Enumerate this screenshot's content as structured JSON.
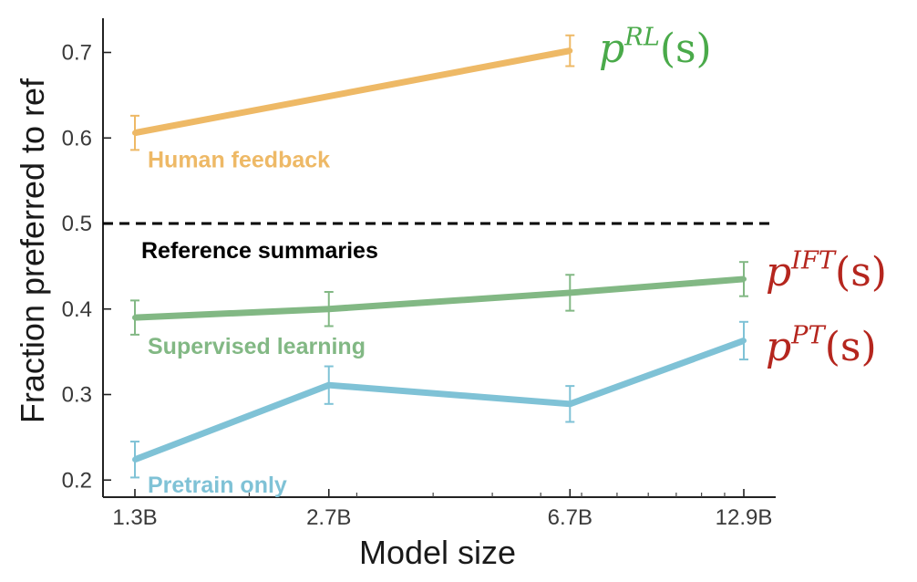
{
  "chart_data": {
    "type": "line",
    "xlabel": "Model size",
    "ylabel": "Fraction preferred to ref",
    "x_scale": "log",
    "categories": [
      "1.3B",
      "2.7B",
      "6.7B",
      "12.9B"
    ],
    "x": [
      1.3,
      2.7,
      6.7,
      12.9
    ],
    "ylim": [
      0.18,
      0.74
    ],
    "yticks": [
      0.2,
      0.3,
      0.4,
      0.5,
      0.6,
      0.7
    ],
    "ytick_labels": [
      "0.2",
      "0.3",
      "0.4",
      "0.5",
      "0.6",
      "0.7"
    ],
    "grid": false,
    "series": [
      {
        "name": "Human feedback",
        "color": "#eeb966",
        "x": [
          1.3,
          6.7
        ],
        "values": [
          0.606,
          0.702
        ],
        "errors": [
          0.02,
          0.018
        ],
        "annotation": "p^{RL}(s)",
        "annotation_color": "#4aaa4a"
      },
      {
        "name": "Supervised learning",
        "color": "#82b884",
        "x": [
          1.3,
          2.7,
          6.7,
          12.9
        ],
        "values": [
          0.39,
          0.4,
          0.419,
          0.435
        ],
        "errors": [
          0.02,
          0.02,
          0.021,
          0.02
        ],
        "annotation": "p^{IFT}(s)",
        "annotation_color": "#b5261e"
      },
      {
        "name": "Pretrain only",
        "color": "#7fc2d6",
        "x": [
          1.3,
          2.7,
          6.7,
          12.9
        ],
        "values": [
          0.224,
          0.311,
          0.289,
          0.363
        ],
        "errors": [
          0.021,
          0.022,
          0.021,
          0.022
        ],
        "annotation": "p^{PT}(s)",
        "annotation_color": "#b5261e"
      }
    ],
    "reference": {
      "name": "Reference summaries",
      "value": 0.5,
      "style": "dashed",
      "color": "#000000"
    },
    "annotations": [
      {
        "base": "p",
        "sup": "RL",
        "tail": "(s)",
        "color": "#4aaa4a"
      },
      {
        "base": "p",
        "sup": "IFT",
        "tail": "(s)",
        "color": "#b5261e"
      },
      {
        "base": "p",
        "sup": "PT",
        "tail": "(s)",
        "color": "#b5261e"
      }
    ]
  }
}
